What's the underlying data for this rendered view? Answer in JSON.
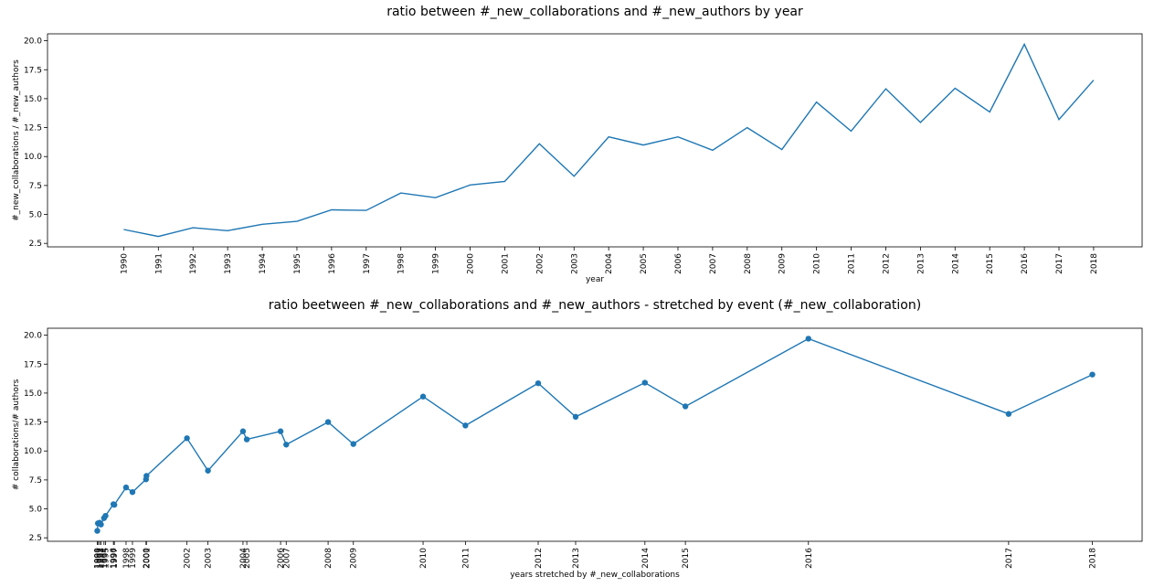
{
  "chart_data": [
    {
      "type": "line",
      "title": "ratio between #_new_collaborations and #_new_authors by year",
      "xlabel": "year",
      "ylabel": "#_new_collaborations / #_new_authors",
      "x": [
        1990,
        1991,
        1992,
        1993,
        1994,
        1995,
        1996,
        1997,
        1998,
        1999,
        2000,
        2001,
        2002,
        2003,
        2004,
        2005,
        2006,
        2007,
        2008,
        2009,
        2010,
        2011,
        2012,
        2013,
        2014,
        2015,
        2016,
        2017,
        2018
      ],
      "y": [
        3.7,
        3.1,
        3.85,
        3.6,
        4.15,
        4.4,
        5.4,
        5.35,
        6.85,
        6.45,
        7.55,
        7.85,
        11.1,
        8.3,
        11.7,
        11.0,
        11.7,
        10.55,
        12.5,
        10.6,
        14.7,
        12.2,
        15.85,
        12.95,
        15.9,
        13.85,
        19.7,
        13.2,
        16.6
      ],
      "x_ticks": [
        "1990",
        "1991",
        "1992",
        "1993",
        "1994",
        "1995",
        "1996",
        "1997",
        "1998",
        "1999",
        "2000",
        "2001",
        "2002",
        "2003",
        "2004",
        "2005",
        "2006",
        "2007",
        "2008",
        "2009",
        "2010",
        "2011",
        "2012",
        "2013",
        "2014",
        "2015",
        "2016",
        "2017",
        "2018"
      ],
      "y_ticks": [
        "2.5",
        "5.0",
        "7.5",
        "10.0",
        "12.5",
        "15.0",
        "17.5",
        "20.0"
      ],
      "ylim": [
        2.2,
        20.6
      ],
      "xlim": [
        1987.8,
        2019.4
      ],
      "markers": false,
      "grid": false
    },
    {
      "type": "line",
      "title": "ratio beetween #_new_collaborations and #_new_authors - stretched by event (#_new_collaboration)",
      "xlabel": "years stretched by #_new_collaborations",
      "ylabel": "# collaborations/# authors",
      "x": [
        0,
        0.4,
        1.5,
        2.4,
        4.4,
        5.4,
        10.6,
        11.2,
        18.9,
        23.1,
        32.0,
        32.3,
        58.9,
        72.7,
        95.7,
        98.2,
        120.4,
        124.1,
        151.6,
        168.2,
        214.0,
        241.8,
        289.6,
        314.2,
        359.7,
        386.3,
        467.1,
        598.6,
        653.6
      ],
      "y": [
        3.1,
        3.75,
        3.8,
        3.65,
        4.2,
        4.4,
        5.4,
        5.35,
        6.85,
        6.45,
        7.55,
        7.85,
        11.1,
        8.3,
        11.7,
        11.0,
        11.7,
        10.55,
        12.5,
        10.6,
        14.7,
        12.2,
        15.85,
        12.95,
        15.9,
        13.85,
        19.7,
        13.2,
        16.6
      ],
      "x_ticks": [
        {
          "label": "1990",
          "value": 0
        },
        {
          "label": "1991",
          "value": 0.4
        },
        {
          "label": "1992",
          "value": 1.5
        },
        {
          "label": "1993",
          "value": 2.4
        },
        {
          "label": "1994",
          "value": 4.4
        },
        {
          "label": "1995",
          "value": 5.4
        },
        {
          "label": "1996",
          "value": 10.6
        },
        {
          "label": "1997",
          "value": 11.2
        },
        {
          "label": "1998",
          "value": 18.9
        },
        {
          "label": "1999",
          "value": 23.1
        },
        {
          "label": "2000",
          "value": 32.0
        },
        {
          "label": "2001",
          "value": 32.3
        },
        {
          "label": "2002",
          "value": 58.9
        },
        {
          "label": "2003",
          "value": 72.7
        },
        {
          "label": "2004",
          "value": 95.7
        },
        {
          "label": "2005",
          "value": 98.2
        },
        {
          "label": "2006",
          "value": 120.4
        },
        {
          "label": "2007",
          "value": 124.1
        },
        {
          "label": "2008",
          "value": 151.6
        },
        {
          "label": "2009",
          "value": 168.2
        },
        {
          "label": "2010",
          "value": 214.0
        },
        {
          "label": "2011",
          "value": 241.8
        },
        {
          "label": "2012",
          "value": 289.6
        },
        {
          "label": "2013",
          "value": 314.2
        },
        {
          "label": "2014",
          "value": 359.7
        },
        {
          "label": "2015",
          "value": 386.3
        },
        {
          "label": "2016",
          "value": 467.1
        },
        {
          "label": "2017",
          "value": 598.6
        },
        {
          "label": "2018",
          "value": 653.6
        }
      ],
      "y_ticks": [
        "2.5",
        "5.0",
        "7.5",
        "10.0",
        "12.5",
        "15.0",
        "17.5",
        "20.0"
      ],
      "ylim": [
        2.2,
        20.6
      ],
      "xlim": [
        -32.7,
        686.3
      ],
      "markers": true,
      "grid": false
    }
  ],
  "colors": {
    "series": "#1f77b4",
    "axes": "#000000",
    "background": "#ffffff"
  }
}
